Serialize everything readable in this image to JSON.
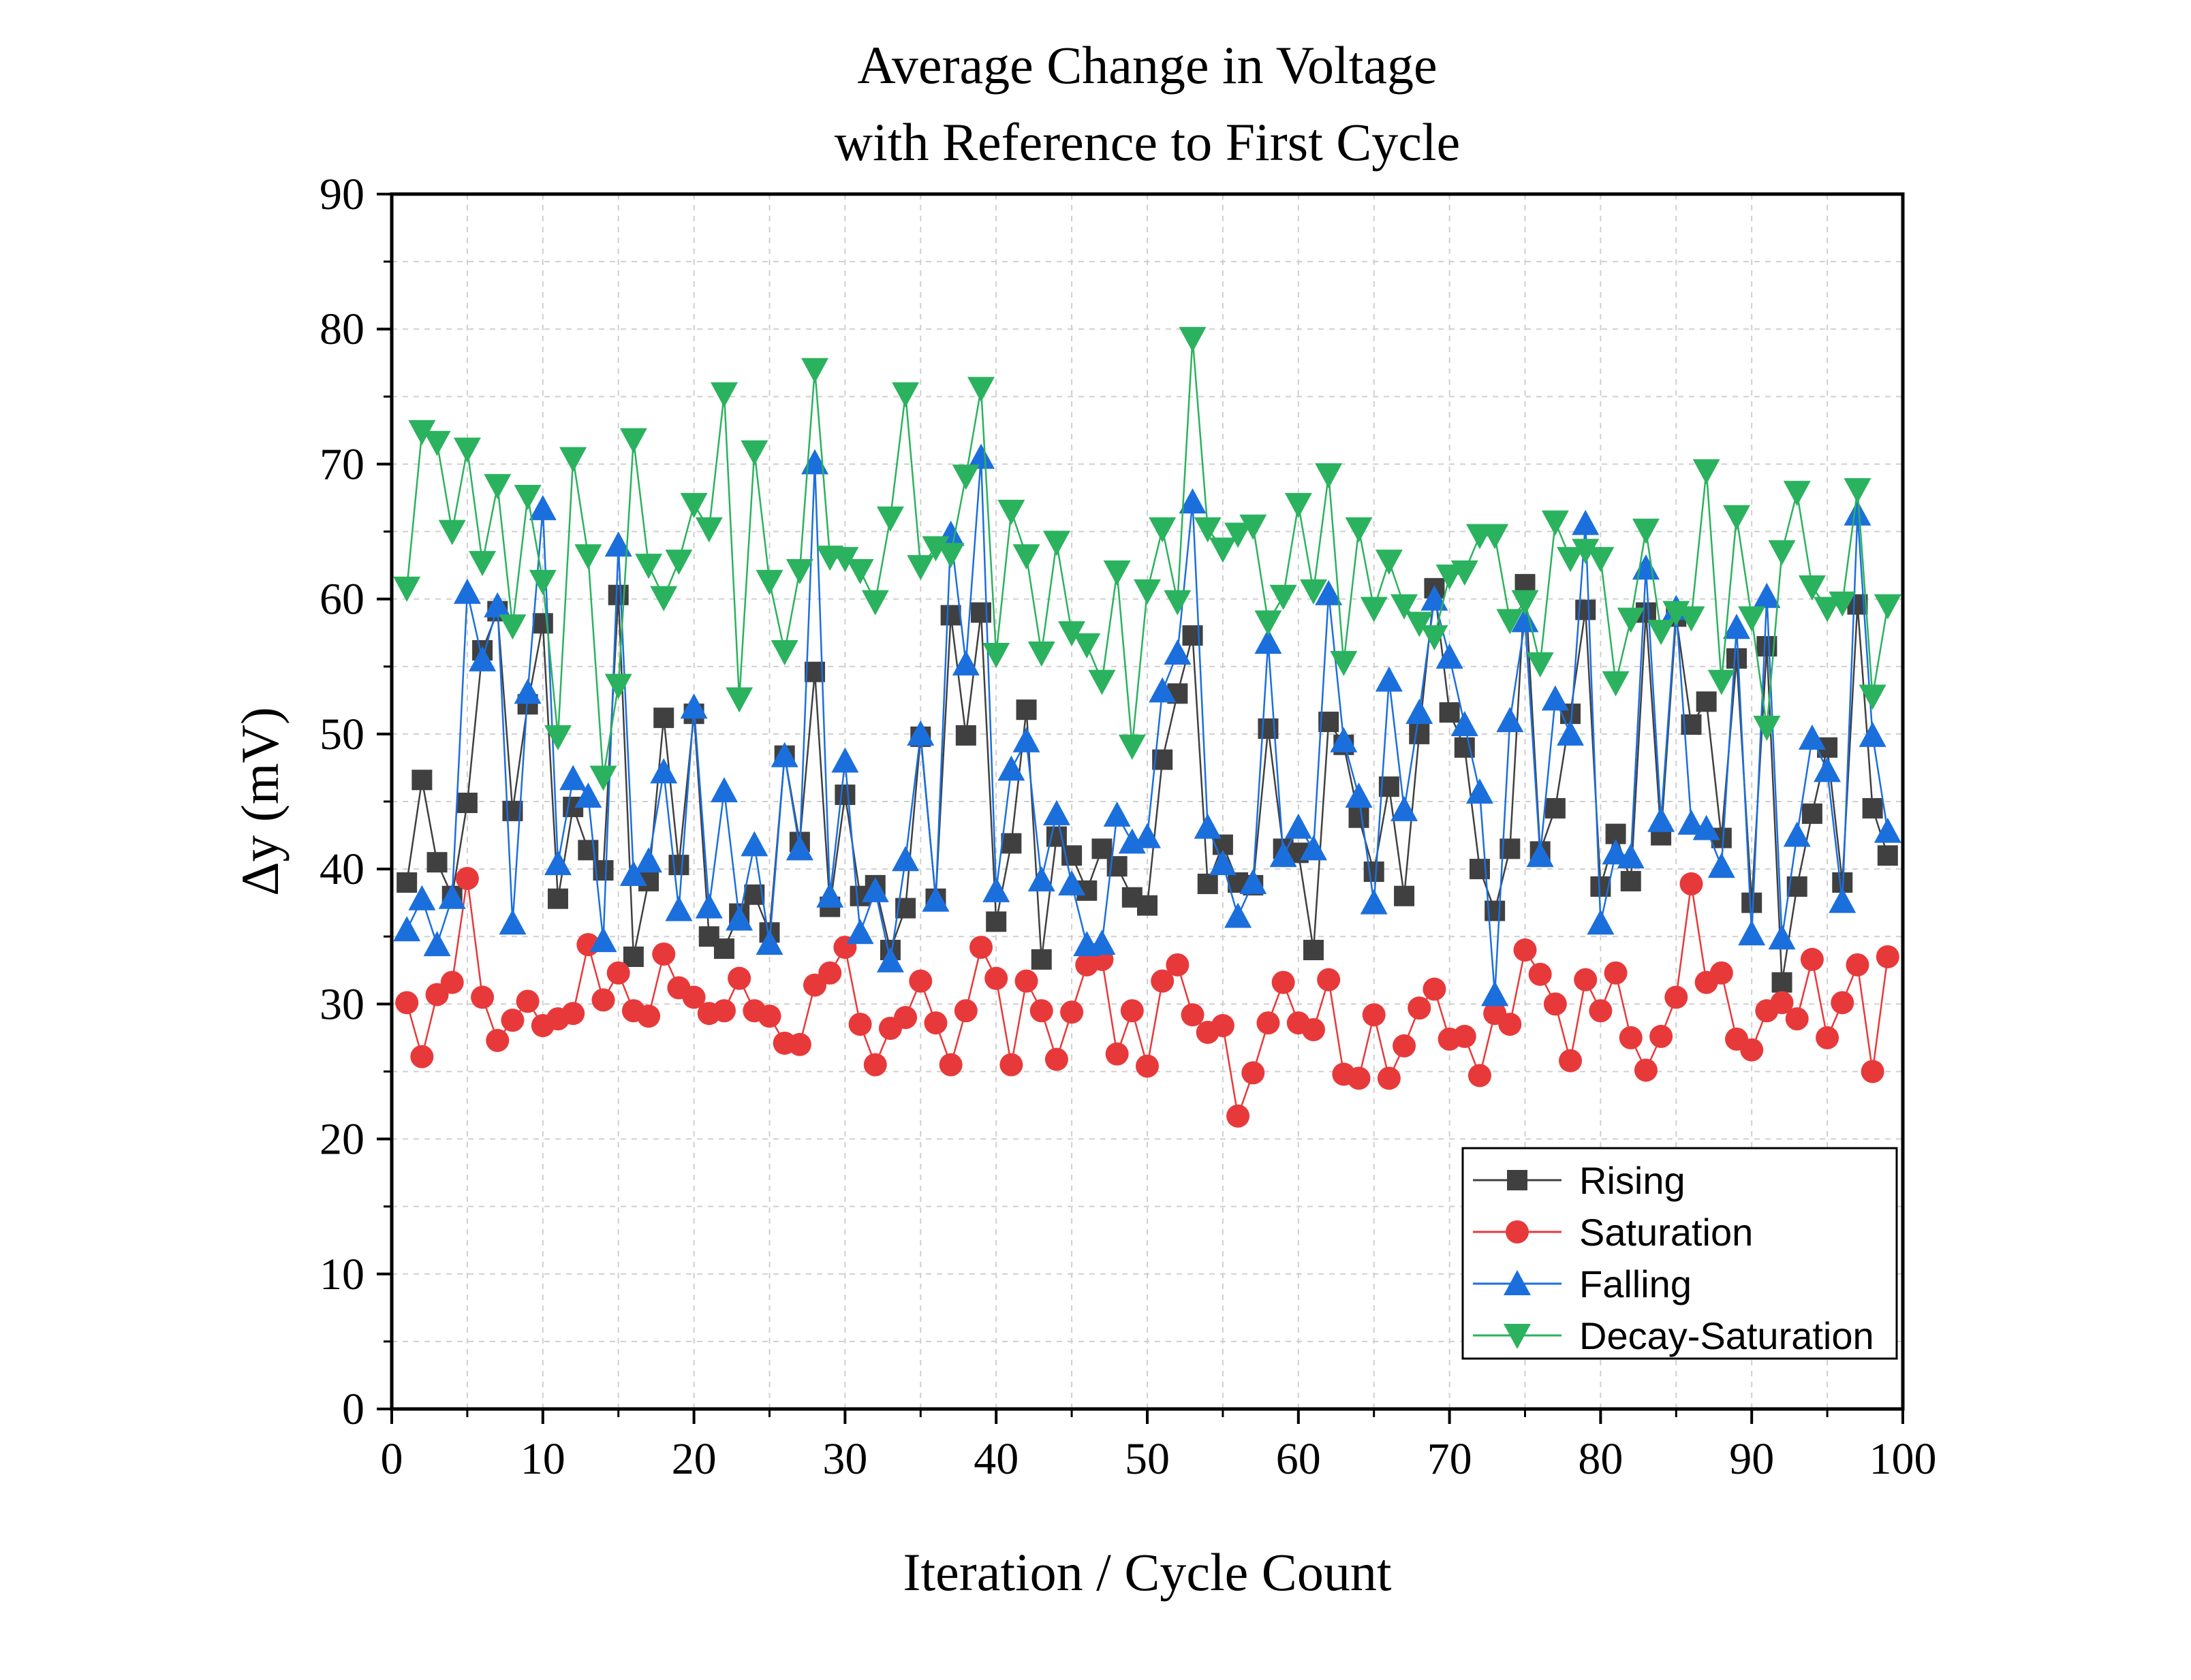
{
  "chart_data": {
    "type": "line",
    "title_line1": "Average Change in Voltage",
    "title_line2": "with Reference to First Cycle",
    "xlabel": "Iteration / Cycle Count",
    "ylabel": "Δy (mV)",
    "xlim": [
      0,
      100
    ],
    "ylim": [
      0,
      90
    ],
    "xticks": [
      0,
      10,
      20,
      30,
      40,
      50,
      60,
      70,
      80,
      90,
      100
    ],
    "yticks": [
      0,
      10,
      20,
      30,
      40,
      50,
      60,
      70,
      80,
      90
    ],
    "grid": true,
    "legend_position": "bottom-right",
    "x": [
      1,
      2,
      3,
      4,
      5,
      6,
      7,
      8,
      9,
      10,
      11,
      12,
      13,
      14,
      15,
      16,
      17,
      18,
      19,
      20,
      21,
      22,
      23,
      24,
      25,
      26,
      27,
      28,
      29,
      30,
      31,
      32,
      33,
      34,
      35,
      36,
      37,
      38,
      39,
      40,
      41,
      42,
      43,
      44,
      45,
      46,
      47,
      48,
      49,
      50,
      51,
      52,
      53,
      54,
      55,
      56,
      57,
      58,
      59,
      60,
      61,
      62,
      63,
      64,
      65,
      66,
      67,
      68,
      69,
      70,
      71,
      72,
      73,
      74,
      75,
      76,
      77,
      78,
      79,
      80,
      81,
      82,
      83,
      84,
      85,
      86,
      87,
      88,
      89,
      90,
      91,
      92,
      93,
      94,
      95,
      96,
      97,
      98,
      99
    ],
    "series": [
      {
        "name": "Rising",
        "color": "#404040",
        "marker": "square",
        "values": [
          39.0,
          46.6,
          40.5,
          38.0,
          44.9,
          56.2,
          59.1,
          44.3,
          52.2,
          58.2,
          37.8,
          44.6,
          41.4,
          39.9,
          60.3,
          33.5,
          39.1,
          51.2,
          40.3,
          51.5,
          35.0,
          34.1,
          36.7,
          38.1,
          35.3,
          48.4,
          42.0,
          54.6,
          37.2,
          45.5,
          38.0,
          38.8,
          34.0,
          37.1,
          49.8,
          37.8,
          58.8,
          49.9,
          59.0,
          36.1,
          41.9,
          51.8,
          33.3,
          42.4,
          41.0,
          38.4,
          41.5,
          40.2,
          37.9,
          37.3,
          48.1,
          53.0,
          57.3,
          38.9,
          41.8,
          39.0,
          38.8,
          50.4,
          41.5,
          41.2,
          34.0,
          50.9,
          49.2,
          43.8,
          39.8,
          46.1,
          38.0,
          50.0,
          60.8,
          51.6,
          49.0,
          40.0,
          36.9,
          41.5,
          61.1,
          41.3,
          44.5,
          51.5,
          59.2,
          38.7,
          42.6,
          39.1,
          59.0,
          42.5,
          58.7,
          50.7,
          52.4,
          42.3,
          55.6,
          37.5,
          56.5,
          31.6,
          38.7,
          44.1,
          49.0,
          39.0,
          59.6,
          44.5,
          41.0
        ]
      },
      {
        "name": "Saturation",
        "color": "#e8393a",
        "marker": "circle",
        "values": [
          30.1,
          26.1,
          30.7,
          31.6,
          39.3,
          30.5,
          27.3,
          28.8,
          30.2,
          28.4,
          28.9,
          29.3,
          34.4,
          30.3,
          32.3,
          29.5,
          29.1,
          33.7,
          31.2,
          30.5,
          29.3,
          29.5,
          31.9,
          29.5,
          29.1,
          27.1,
          27.0,
          31.4,
          32.3,
          34.2,
          28.5,
          25.5,
          28.2,
          29.0,
          31.7,
          28.6,
          25.5,
          29.5,
          34.2,
          31.9,
          25.5,
          31.7,
          29.5,
          25.9,
          29.4,
          32.9,
          33.3,
          26.3,
          29.5,
          25.4,
          31.7,
          32.9,
          29.2,
          27.9,
          28.4,
          21.7,
          24.9,
          28.6,
          31.6,
          28.6,
          28.1,
          31.8,
          24.8,
          24.5,
          29.2,
          24.5,
          26.9,
          29.7,
          31.1,
          27.4,
          27.6,
          24.7,
          29.3,
          28.5,
          34.0,
          32.2,
          30.0,
          25.8,
          31.8,
          29.5,
          32.3,
          27.5,
          25.1,
          27.6,
          30.5,
          38.9,
          31.6,
          32.3,
          27.4,
          26.6,
          29.5,
          30.1,
          28.9,
          33.3,
          27.5,
          30.1,
          32.9,
          25.0,
          33.5
        ]
      },
      {
        "name": "Falling",
        "color": "#1b6fdd",
        "marker": "triangle-up",
        "values": [
          35.5,
          37.8,
          34.4,
          37.9,
          60.5,
          55.5,
          59.5,
          36.0,
          53.1,
          66.7,
          40.4,
          46.7,
          45.4,
          34.7,
          64.0,
          39.6,
          40.6,
          47.2,
          37.0,
          52.0,
          37.2,
          45.8,
          36.3,
          41.8,
          34.5,
          48.4,
          41.5,
          70.1,
          38.0,
          48.0,
          35.3,
          38.4,
          33.2,
          40.7,
          50.0,
          37.7,
          64.8,
          55.2,
          70.5,
          38.4,
          47.4,
          49.5,
          39.2,
          44.1,
          38.9,
          34.4,
          34.5,
          44.0,
          42.0,
          42.4,
          53.2,
          56.0,
          67.2,
          43.1,
          40.4,
          36.5,
          39.0,
          56.8,
          41.0,
          43.1,
          41.5,
          60.4,
          49.5,
          45.4,
          37.5,
          54.0,
          44.4,
          51.6,
          60.0,
          55.7,
          50.7,
          45.7,
          30.7,
          51.0,
          58.4,
          41.0,
          52.6,
          50.0,
          65.6,
          36.0,
          41.2,
          40.9,
          62.3,
          43.6,
          59.3,
          43.4,
          43.0,
          40.2,
          57.9,
          35.2,
          60.2,
          34.9,
          42.5,
          49.7,
          47.3,
          37.6,
          66.3,
          49.9,
          42.8
        ]
      },
      {
        "name": "Decay-Saturation",
        "color": "#2bb25e",
        "marker": "triangle-down",
        "values": [
          60.8,
          72.4,
          71.6,
          65.0,
          71.1,
          62.7,
          68.4,
          58.0,
          67.6,
          61.3,
          49.8,
          70.4,
          63.2,
          46.8,
          53.6,
          71.8,
          62.5,
          60.1,
          62.8,
          67.0,
          65.2,
          75.2,
          52.6,
          70.9,
          61.3,
          56.1,
          62.1,
          77.0,
          63.1,
          63.0,
          62.1,
          59.8,
          66.0,
          75.2,
          62.4,
          63.8,
          63.3,
          69.1,
          75.6,
          55.9,
          66.5,
          63.2,
          56.0,
          64.2,
          57.5,
          56.6,
          53.9,
          62.0,
          49.1,
          60.6,
          65.2,
          59.8,
          79.3,
          65.2,
          63.7,
          64.8,
          65.4,
          58.3,
          60.2,
          67.0,
          60.6,
          69.2,
          55.3,
          65.2,
          59.3,
          62.8,
          59.5,
          58.2,
          57.2,
          61.7,
          62.0,
          64.7,
          64.7,
          58.4,
          59.8,
          55.2,
          65.7,
          63.0,
          63.6,
          63.0,
          53.8,
          58.5,
          65.1,
          57.6,
          59.0,
          58.6,
          69.5,
          53.9,
          66.1,
          58.6,
          50.5,
          63.5,
          67.9,
          60.9,
          59.3,
          59.7,
          68.1,
          52.8,
          59.5
        ]
      }
    ]
  }
}
